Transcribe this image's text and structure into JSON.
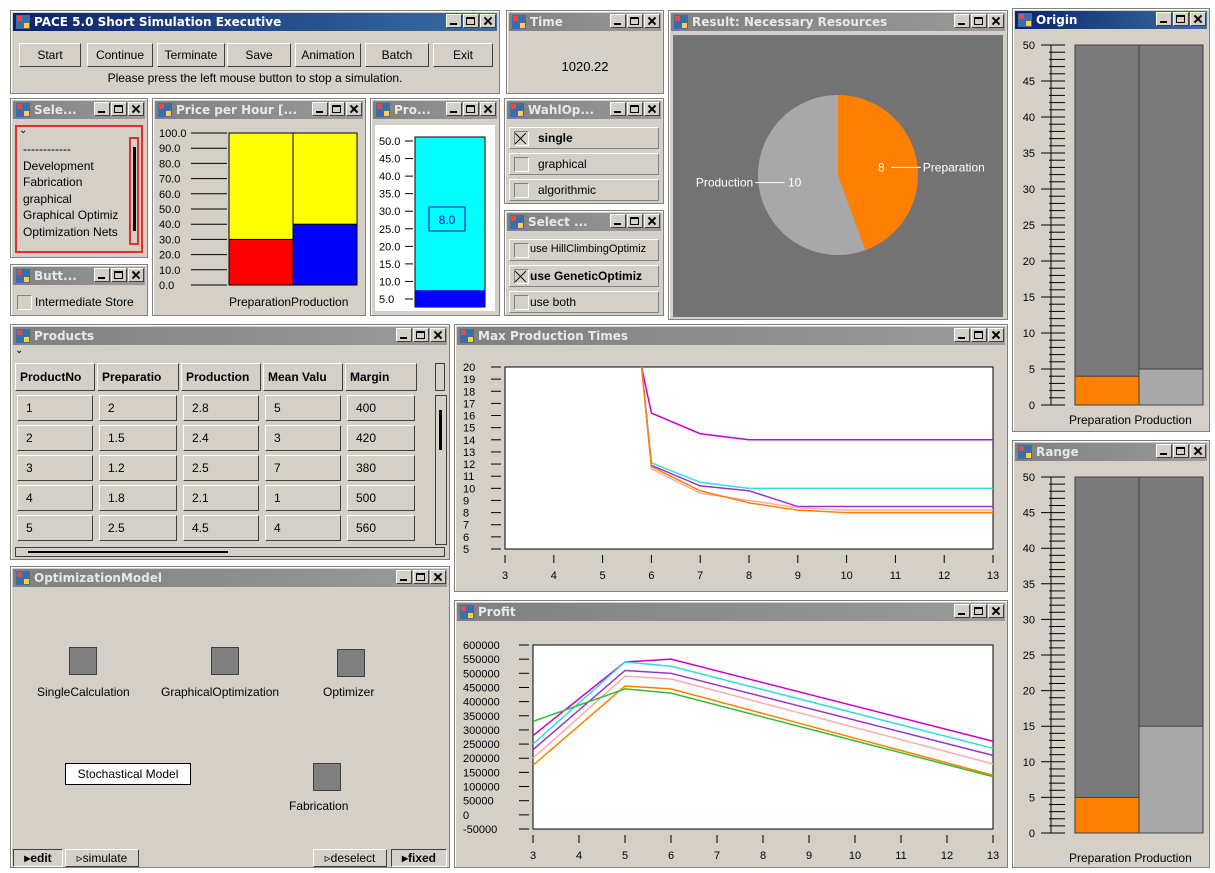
{
  "exec": {
    "title": "PACE 5.0   Short Simulation Executive",
    "buttons": [
      "Start",
      "Continue",
      "Terminate",
      "Save",
      "Animation",
      "Batch",
      "Exit"
    ],
    "message": "Please press the left mouse button to stop a simulation."
  },
  "time": {
    "title": "Time",
    "value": "1020.22"
  },
  "result": {
    "title": "Result: Necessary Resources",
    "chart_data": {
      "type": "pie",
      "slices": [
        {
          "label": "Preparation",
          "value": 8,
          "color": "#ff8000"
        },
        {
          "label": "Production",
          "value": 10,
          "color": "#a8a8a8"
        }
      ]
    }
  },
  "origin": {
    "title": "Origin",
    "chart_data": {
      "type": "bar",
      "categories": [
        "Preparation",
        "Production"
      ],
      "values": [
        4,
        5
      ],
      "colors": [
        "#ff8000",
        "#a8a8a8"
      ],
      "ylim": [
        0,
        50
      ],
      "yticks": [
        "50",
        "45",
        "40",
        "35",
        "30",
        "25",
        "20",
        "15",
        "10",
        "5",
        "0"
      ]
    },
    "xlabel": "Preparation Production"
  },
  "range": {
    "title": "Range",
    "chart_data": {
      "type": "bar",
      "categories": [
        "Preparation",
        "Production"
      ],
      "values": [
        5,
        15
      ],
      "colors": [
        "#ff8000",
        "#a8a8a8"
      ],
      "ylim": [
        0,
        50
      ],
      "yticks": [
        "50",
        "45",
        "40",
        "35",
        "30",
        "25",
        "20",
        "15",
        "10",
        "5",
        "0"
      ]
    },
    "xlabel": "Preparation Production"
  },
  "select_list": {
    "title": "Sele...",
    "items": [
      "------------",
      "Development",
      "Fabrication",
      "graphical",
      "Graphical Optimiz",
      "Optimization Nets"
    ]
  },
  "price": {
    "title": "Price per Hour [...",
    "yticks": [
      "100.0",
      "90.0",
      "80.0",
      "70.0",
      "60.0",
      "50.0",
      "40.0",
      "30.0",
      "20.0",
      "10.0",
      "0.0"
    ],
    "xlabel": "PreparationProduction",
    "chart_data": {
      "type": "bar",
      "categories": [
        "Preparation",
        "Production"
      ],
      "stacked": true,
      "ylim": [
        0,
        100
      ],
      "series": [
        {
          "values": [
            30,
            40
          ],
          "colors": [
            "#ff0000",
            "#0000ff"
          ]
        },
        {
          "values": [
            70,
            60
          ],
          "colors": [
            "#ffff00",
            "#ffff00"
          ]
        }
      ]
    }
  },
  "pro": {
    "title": "Pro...",
    "yticks": [
      "50.0",
      "45.0",
      "40.0",
      "35.0",
      "30.0",
      "25.0",
      "20.0",
      "15.0",
      "10.0",
      "5.0"
    ],
    "value_label": "8.0",
    "level": 7.5
  },
  "wahl": {
    "title": "WahlOp...",
    "options": [
      "single",
      "graphical",
      "algorithmic"
    ],
    "checked": 0
  },
  "select_opt": {
    "title": "Select ...",
    "options": [
      "use HillClimbingOptimiz",
      "use GeneticOptimiz",
      "use both"
    ],
    "checked": 1
  },
  "buttons_win": {
    "title": "Butt...",
    "checkbox_label": "Intermediate Store"
  },
  "products": {
    "title": "Products",
    "columns": [
      "ProductNo",
      "Preparatio",
      "Production",
      "Mean Valu",
      "Margin"
    ],
    "rows": [
      [
        "1",
        "2",
        "2.8",
        "5",
        "400"
      ],
      [
        "2",
        "1.5",
        "2.4",
        "3",
        "420"
      ],
      [
        "3",
        "1.2",
        "2.5",
        "7",
        "380"
      ],
      [
        "4",
        "1.8",
        "2.1",
        "1",
        "500"
      ],
      [
        "5",
        "2.5",
        "4.5",
        "4",
        "560"
      ]
    ]
  },
  "maxprod": {
    "title": "Max Production Times",
    "chart_data": {
      "type": "line",
      "x": [
        3,
        4,
        5,
        6,
        7,
        8,
        9,
        10,
        11,
        12,
        13
      ],
      "xlim": [
        3,
        13
      ],
      "ylim": [
        5,
        20
      ],
      "yticks": [
        "20",
        "19",
        "18",
        "17",
        "16",
        "15",
        "14",
        "13",
        "12",
        "11",
        "10",
        "9",
        "8",
        "7",
        "6",
        "5"
      ],
      "series": [
        {
          "color": "#cc00cc",
          "points": [
            [
              5.8,
              20
            ],
            [
              6,
              16.2
            ],
            [
              7,
              14.5
            ],
            [
              8,
              14
            ],
            [
              9,
              14
            ],
            [
              10,
              14
            ],
            [
              11,
              14
            ],
            [
              12,
              14
            ],
            [
              13,
              14
            ]
          ]
        },
        {
          "color": "#33dddd",
          "points": [
            [
              5.8,
              20
            ],
            [
              6,
              12.1
            ],
            [
              7,
              10.5
            ],
            [
              8,
              10
            ],
            [
              9,
              10
            ],
            [
              10,
              10
            ],
            [
              11,
              10
            ],
            [
              12,
              10
            ],
            [
              13,
              10
            ]
          ]
        },
        {
          "color": "#9933cc",
          "points": [
            [
              5.8,
              20
            ],
            [
              6,
              11.9
            ],
            [
              7,
              10.2
            ],
            [
              8,
              9.8
            ],
            [
              9,
              8.5
            ],
            [
              10,
              8.5
            ],
            [
              11,
              8.5
            ],
            [
              12,
              8.5
            ],
            [
              13,
              8.5
            ]
          ]
        },
        {
          "color": "#ffaaaa",
          "points": [
            [
              5.8,
              20
            ],
            [
              6,
              11.6
            ],
            [
              7,
              9.6
            ],
            [
              8,
              9
            ],
            [
              9,
              8.4
            ],
            [
              10,
              8.2
            ],
            [
              11,
              8.2
            ],
            [
              12,
              8.2
            ],
            [
              13,
              8.2
            ]
          ]
        },
        {
          "color": "#ff8000",
          "points": [
            [
              5.8,
              20
            ],
            [
              6,
              11.8
            ],
            [
              7,
              9.8
            ],
            [
              8,
              8.8
            ],
            [
              9,
              8.2
            ],
            [
              10,
              8
            ],
            [
              11,
              8
            ],
            [
              12,
              8
            ],
            [
              13,
              8
            ]
          ]
        }
      ]
    }
  },
  "profit": {
    "title": "Profit",
    "chart_data": {
      "type": "line",
      "x": [
        3,
        4,
        5,
        6,
        7,
        8,
        9,
        10,
        11,
        12,
        13
      ],
      "xlim": [
        3,
        13
      ],
      "ylim": [
        -50000,
        600000
      ],
      "yticks": [
        "600000",
        "550000",
        "500000",
        "450000",
        "400000",
        "350000",
        "300000",
        "250000",
        "200000",
        "150000",
        "100000",
        "50000",
        "0",
        "-50000"
      ],
      "series": [
        {
          "color": "#cc00cc",
          "points": [
            [
              3,
              280000
            ],
            [
              5,
              540000
            ],
            [
              6,
              550000
            ],
            [
              13,
              260000
            ]
          ]
        },
        {
          "color": "#33dddd",
          "points": [
            [
              3,
              250000
            ],
            [
              5,
              540000
            ],
            [
              6,
              525000
            ],
            [
              13,
              235000
            ]
          ]
        },
        {
          "color": "#9933cc",
          "points": [
            [
              3,
              230000
            ],
            [
              5,
              510000
            ],
            [
              6,
              500000
            ],
            [
              13,
              210000
            ]
          ]
        },
        {
          "color": "#ffaaaa",
          "points": [
            [
              3,
              200000
            ],
            [
              5,
              490000
            ],
            [
              6,
              480000
            ],
            [
              13,
              180000
            ]
          ]
        },
        {
          "color": "#ff8000",
          "points": [
            [
              3,
              175000
            ],
            [
              5,
              455000
            ],
            [
              6,
              445000
            ],
            [
              13,
              140000
            ]
          ]
        },
        {
          "color": "#33bb33",
          "points": [
            [
              3,
              330000
            ],
            [
              5,
              445000
            ],
            [
              6,
              430000
            ],
            [
              13,
              135000
            ]
          ]
        }
      ]
    }
  },
  "optmodel": {
    "title": "OptimizationModel",
    "nodes": [
      "SingleCalculation",
      "GraphicalOptimization",
      "Optimizer",
      "Fabrication"
    ],
    "box_label": "Stochastical Model",
    "bottom_buttons": [
      "edit",
      "simulate",
      "deselect",
      "fixed"
    ]
  }
}
